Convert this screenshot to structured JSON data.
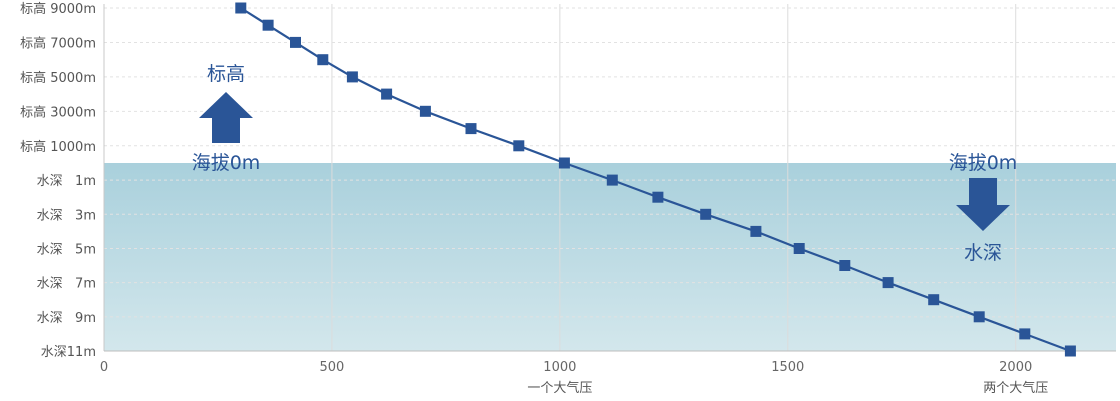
{
  "chart_data": {
    "type": "line",
    "x": [
      300,
      360,
      420,
      480,
      545,
      620,
      705,
      805,
      910,
      1010,
      1115,
      1215,
      1320,
      1430,
      1525,
      1625,
      1720,
      1820,
      1920,
      2020,
      2120
    ],
    "y": [
      9000,
      8000,
      7000,
      6000,
      5000,
      4000,
      3000,
      2000,
      1000,
      0,
      -1,
      -2,
      -3,
      -4,
      -5,
      -6,
      -7,
      -8,
      -9,
      -10,
      -11
    ],
    "xlim": [
      0,
      2220
    ],
    "xticks": [
      {
        "value": 0,
        "label": "0"
      },
      {
        "value": 500,
        "label": "500"
      },
      {
        "value": 1000,
        "label": "1000"
      },
      {
        "value": 1500,
        "label": "1500"
      },
      {
        "value": 2000,
        "label": "2000"
      }
    ],
    "xnotes": [
      {
        "value": 1000,
        "label": "一个大气压"
      },
      {
        "value": 2000,
        "label": "两个大气压"
      }
    ],
    "elevation_ticks": [
      {
        "value": 9000,
        "label": "标高 9000m"
      },
      {
        "value": 7000,
        "label": "标高 7000m"
      },
      {
        "value": 5000,
        "label": "标高 5000m"
      },
      {
        "value": 3000,
        "label": "标高 3000m"
      },
      {
        "value": 1000,
        "label": "标高 1000m"
      }
    ],
    "depth_ticks": [
      {
        "value": -1,
        "label": "水深   1m"
      },
      {
        "value": -3,
        "label": "水深   3m"
      },
      {
        "value": -5,
        "label": "水深   5m"
      },
      {
        "value": -7,
        "label": "水深   7m"
      },
      {
        "value": -9,
        "label": "水深   9m"
      },
      {
        "value": -11,
        "label": "水深11m"
      }
    ],
    "elevation_range": [
      0,
      9000
    ],
    "depth_range": [
      0,
      -11
    ],
    "grid": "vertical and horizontal dashed",
    "annotations": {
      "up_label": "标高",
      "up_sea_level": "海拔0m",
      "down_sea_level": "海拔0m",
      "down_label": "水深"
    },
    "colors": {
      "line": "#2a5597",
      "marker": "#2a5597",
      "water_top": "#a9d0dc",
      "water_bottom": "#d3e7ec",
      "arrow": "#2a5597",
      "grid": "#dcdcdc"
    }
  }
}
